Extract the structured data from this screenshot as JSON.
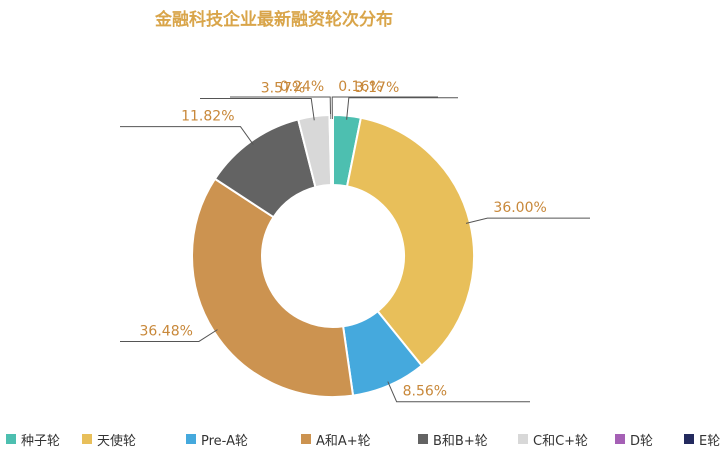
{
  "chart_data": {
    "type": "pie",
    "title": "金融科技企业最新融资轮次分布",
    "donut": true,
    "legend_position": "bottom",
    "series": [
      {
        "name": "种子轮",
        "value": 3.17,
        "label": "3.17%",
        "color": "#4dbfb0"
      },
      {
        "name": "天使轮",
        "value": 36.0,
        "label": "36.00%",
        "color": "#e8bf5a"
      },
      {
        "name": "Pre-A轮",
        "value": 8.56,
        "label": "8.56%",
        "color": "#45a9dd"
      },
      {
        "name": "A和A+轮",
        "value": 36.48,
        "label": "36.48%",
        "color": "#cc9350"
      },
      {
        "name": "B和B+轮",
        "value": 11.82,
        "label": "11.82%",
        "color": "#636363"
      },
      {
        "name": "C和C+轮",
        "value": 3.57,
        "label": "3.57%",
        "color": "#d8d8d8"
      },
      {
        "name": "D轮",
        "value": 0.24,
        "label": "0.24%",
        "color": "#a560b5"
      },
      {
        "name": "E轮",
        "value": 0.16,
        "label": "0.16%",
        "color": "#232a5e"
      }
    ]
  },
  "colors": {
    "title": "#d9a54a",
    "label_text": "#c8883a",
    "leader_line": "#555555"
  }
}
